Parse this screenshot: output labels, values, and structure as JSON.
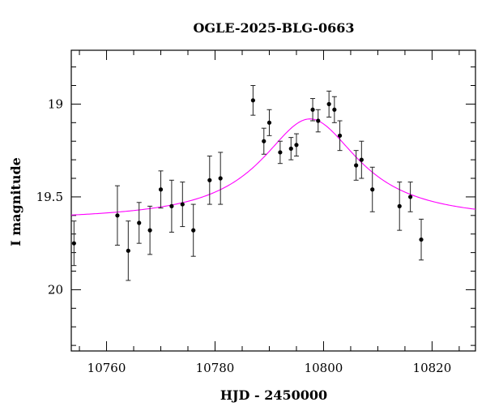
{
  "chart_data": {
    "type": "scatter",
    "title": "OGLE-2025-BLG-0663",
    "xlabel": "HJD - 2450000",
    "ylabel": "I magnitude",
    "xlim": [
      10753.5,
      10828
    ],
    "ylim": [
      20.33,
      18.71
    ],
    "y_inverted": true,
    "x_ticks": [
      10760,
      10780,
      10800,
      10820
    ],
    "x_tick_labels": [
      "10760",
      "10780",
      "10800",
      "10820"
    ],
    "y_ticks": [
      19,
      19.5,
      20
    ],
    "y_tick_labels": [
      "19",
      "19.5",
      "20"
    ],
    "x_minor_step": 5,
    "y_minor_step": 0.1,
    "grid": false,
    "points": [
      {
        "x": 10754,
        "y": 19.75,
        "err": 0.12
      },
      {
        "x": 10762,
        "y": 19.6,
        "err": 0.16
      },
      {
        "x": 10764,
        "y": 19.79,
        "err": 0.16
      },
      {
        "x": 10766,
        "y": 19.64,
        "err": 0.11
      },
      {
        "x": 10768,
        "y": 19.68,
        "err": 0.13
      },
      {
        "x": 10770,
        "y": 19.46,
        "err": 0.1
      },
      {
        "x": 10772,
        "y": 19.55,
        "err": 0.14
      },
      {
        "x": 10774,
        "y": 19.54,
        "err": 0.12
      },
      {
        "x": 10776,
        "y": 19.68,
        "err": 0.14
      },
      {
        "x": 10779,
        "y": 19.41,
        "err": 0.13
      },
      {
        "x": 10781,
        "y": 19.4,
        "err": 0.14
      },
      {
        "x": 10787,
        "y": 18.98,
        "err": 0.08
      },
      {
        "x": 10789,
        "y": 19.2,
        "err": 0.07
      },
      {
        "x": 10790,
        "y": 19.1,
        "err": 0.07
      },
      {
        "x": 10792,
        "y": 19.26,
        "err": 0.06
      },
      {
        "x": 10794,
        "y": 19.24,
        "err": 0.06
      },
      {
        "x": 10795,
        "y": 19.22,
        "err": 0.06
      },
      {
        "x": 10798,
        "y": 19.03,
        "err": 0.06
      },
      {
        "x": 10799,
        "y": 19.09,
        "err": 0.06
      },
      {
        "x": 10801,
        "y": 19.0,
        "err": 0.07
      },
      {
        "x": 10802,
        "y": 19.03,
        "err": 0.07
      },
      {
        "x": 10803,
        "y": 19.17,
        "err": 0.08
      },
      {
        "x": 10806,
        "y": 19.33,
        "err": 0.08
      },
      {
        "x": 10807,
        "y": 19.3,
        "err": 0.1
      },
      {
        "x": 10809,
        "y": 19.46,
        "err": 0.12
      },
      {
        "x": 10814,
        "y": 19.55,
        "err": 0.13
      },
      {
        "x": 10816,
        "y": 19.5,
        "err": 0.08
      },
      {
        "x": 10818,
        "y": 19.73,
        "err": 0.11
      }
    ],
    "model": {
      "t0": 10797.5,
      "peak_mag": 19.08,
      "baseline_mag": 19.63,
      "width": 11.0,
      "color": "#ff00ff"
    },
    "point_color": "#000000"
  }
}
